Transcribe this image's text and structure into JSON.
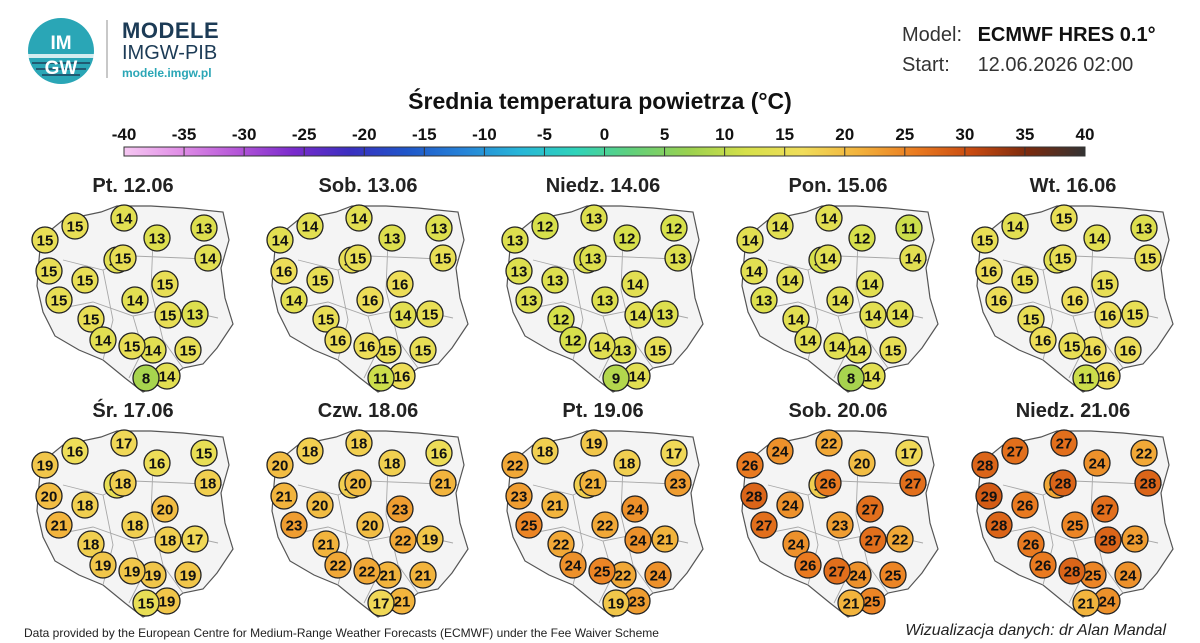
{
  "header": {
    "brand_title": "MODELE",
    "brand_subtitle": "IMGW-PIB",
    "brand_url": "modele.imgw.pl",
    "logo_text_top": "IM",
    "logo_text_bottom": "GW",
    "model_label": "Model:",
    "model_value": "ECMWF HRES 0.1°",
    "start_label": "Start:",
    "start_value": "12.06.2026 02:00"
  },
  "map_title": "Średnia temperatura powietrza (°C)",
  "scale": {
    "ticks": [
      "-40",
      "-35",
      "-30",
      "-25",
      "-20",
      "-15",
      "-10",
      "-5",
      "0",
      "5",
      "10",
      "15",
      "20",
      "25",
      "30",
      "35",
      "40"
    ],
    "min": -40,
    "max": 40,
    "colors": [
      "#f6c8f2",
      "#e08ee6",
      "#b556d8",
      "#7a2bcc",
      "#3a2fc0",
      "#1f56c9",
      "#2683d8",
      "#27b6d8",
      "#2fd3b9",
      "#62d07a",
      "#9bd14f",
      "#d6e04a",
      "#f0dd5a",
      "#f2b23c",
      "#ea7b20",
      "#c84a10",
      "#7a2a0e",
      "#333333"
    ]
  },
  "days": [
    {
      "label": "Pt. 12.06",
      "values": [
        15,
        15,
        14,
        13,
        14,
        13,
        14,
        15,
        15,
        15,
        15,
        15,
        14,
        15,
        15,
        13,
        14,
        15,
        14,
        14,
        15,
        8
      ]
    },
    {
      "label": "Sob. 13.06",
      "values": [
        14,
        14,
        14,
        13,
        15,
        13,
        15,
        16,
        15,
        15,
        14,
        15,
        16,
        16,
        14,
        15,
        15,
        16,
        16,
        16,
        15,
        11
      ]
    },
    {
      "label": "Niedz. 14.06",
      "values": [
        13,
        12,
        13,
        12,
        13,
        12,
        13,
        13,
        13,
        13,
        13,
        12,
        13,
        14,
        14,
        13,
        13,
        14,
        12,
        14,
        15,
        9
      ]
    },
    {
      "label": "Pon. 15.06",
      "values": [
        14,
        14,
        14,
        11,
        14,
        12,
        12,
        14,
        14,
        14,
        13,
        14,
        14,
        14,
        14,
        14,
        14,
        14,
        14,
        14,
        15,
        8
      ]
    },
    {
      "label": "Wt. 16.06",
      "values": [
        15,
        14,
        15,
        13,
        15,
        14,
        14,
        16,
        15,
        15,
        16,
        15,
        16,
        15,
        16,
        15,
        16,
        15,
        16,
        16,
        16,
        11
      ]
    },
    {
      "label": "Śr. 17.06",
      "values": [
        19,
        16,
        17,
        15,
        18,
        16,
        15,
        20,
        18,
        18,
        21,
        18,
        18,
        20,
        18,
        17,
        19,
        19,
        19,
        19,
        19,
        15
      ]
    },
    {
      "label": "Czw. 18.06",
      "values": [
        20,
        18,
        18,
        16,
        21,
        18,
        18,
        21,
        20,
        20,
        23,
        21,
        20,
        23,
        22,
        19,
        21,
        22,
        22,
        21,
        21,
        17
      ]
    },
    {
      "label": "Pt. 19.06",
      "values": [
        22,
        18,
        19,
        17,
        23,
        18,
        18,
        23,
        21,
        21,
        25,
        22,
        22,
        24,
        24,
        21,
        22,
        25,
        24,
        23,
        24,
        19
      ]
    },
    {
      "label": "Sob. 20.06",
      "values": [
        26,
        24,
        22,
        17,
        27,
        20,
        18,
        28,
        24,
        26,
        27,
        24,
        23,
        27,
        27,
        22,
        24,
        27,
        26,
        25,
        25,
        21
      ]
    },
    {
      "label": "Niedz. 21.06",
      "values": [
        28,
        27,
        27,
        22,
        28,
        24,
        22,
        29,
        26,
        28,
        28,
        26,
        25,
        27,
        28,
        23,
        25,
        28,
        26,
        24,
        24,
        21
      ]
    }
  ],
  "footer": {
    "left": "Data provided by the European Centre for Medium-Range Weather Forecasts (ECMWF) under the Fee Waiver Scheme",
    "right": "Wizualizacja danych: dr Alan Mandal"
  }
}
